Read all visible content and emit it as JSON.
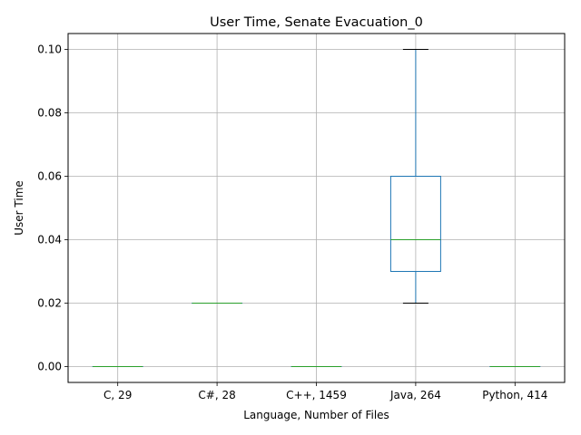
{
  "chart_data": {
    "type": "box",
    "title": "User Time, Senate Evacuation_0",
    "xlabel": "Language, Number of Files",
    "ylabel": "User Time",
    "ylim": [
      -0.005,
      0.105
    ],
    "yticks": [
      "0.00",
      "0.02",
      "0.04",
      "0.06",
      "0.08",
      "0.10"
    ],
    "grid": true,
    "categories": [
      "C, 29",
      "C#, 28",
      "C++, 1459",
      "Java, 264",
      "Python, 414"
    ],
    "boxes": [
      {
        "category": "C, 29",
        "whisker_low": 0.0,
        "q1": 0.0,
        "median": 0.0,
        "q3": 0.0,
        "whisker_high": 0.0
      },
      {
        "category": "C#, 28",
        "whisker_low": 0.02,
        "q1": 0.02,
        "median": 0.02,
        "q3": 0.02,
        "whisker_high": 0.02
      },
      {
        "category": "C++, 1459",
        "whisker_low": 0.0,
        "q1": 0.0,
        "median": 0.0,
        "q3": 0.0,
        "whisker_high": 0.0
      },
      {
        "category": "Java, 264",
        "whisker_low": 0.02,
        "q1": 0.03,
        "median": 0.04,
        "q3": 0.06,
        "whisker_high": 0.1
      },
      {
        "category": "Python, 414",
        "whisker_low": 0.0,
        "q1": 0.0,
        "median": 0.0,
        "q3": 0.0,
        "whisker_high": 0.0
      }
    ],
    "colors": {
      "box": "#1f77b4",
      "median": "#2ca02c",
      "whisker_cap": "#000000",
      "grid": "#b0b0b0",
      "axis": "#000000"
    }
  }
}
